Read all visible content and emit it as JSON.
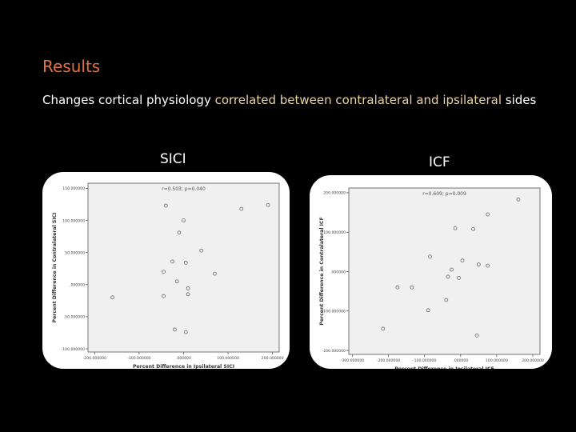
{
  "slide": {
    "heading": "Results",
    "subtitle_part1": "Changes cortical physiology ",
    "subtitle_highlight": "correlated between contralateral and ipsilateral",
    "subtitle_part2": "  sides",
    "colors": {
      "heading": "#e0703e",
      "highlight": "#e8d2a0",
      "background": "#000000"
    }
  },
  "chart_data": [
    {
      "type": "scatter",
      "panel_label": "SICI",
      "annotation": "r=0.503; p=0.040",
      "xlabel": "Percent Difference in Ipsilateral SICI",
      "ylabel": "Percent Difference in Contralateral SICI",
      "xlim": [
        -215,
        215
      ],
      "ylim": [
        -105,
        158
      ],
      "x_ticks": [
        -200,
        -100,
        0,
        100,
        200
      ],
      "y_ticks": [
        -100,
        -50,
        0,
        50,
        100,
        150
      ],
      "x_tick_labels": [
        "-200.000000",
        "-100.000000",
        ".000000",
        "100.000000",
        "200.000000"
      ],
      "y_tick_labels": [
        "-100.000000",
        "-50.000000",
        ".000000",
        "50.000000",
        "100.000000",
        "150.000000"
      ],
      "points": [
        [
          -160,
          -20
        ],
        [
          -40,
          123
        ],
        [
          0,
          100
        ],
        [
          -10,
          81
        ],
        [
          130,
          118
        ],
        [
          190,
          124
        ],
        [
          40,
          53
        ],
        [
          -25,
          36
        ],
        [
          5,
          34
        ],
        [
          70,
          17
        ],
        [
          -45,
          20
        ],
        [
          -15,
          5
        ],
        [
          10,
          -6
        ],
        [
          -45,
          -18
        ],
        [
          10,
          -15
        ],
        [
          -20,
          -70
        ],
        [
          5,
          -74
        ]
      ]
    },
    {
      "type": "scatter",
      "panel_label": "ICF",
      "annotation": "r=0.609; p=0.009",
      "xlabel": "Percent Difference in Ipsilateral ICF",
      "ylabel": "Percent Difference in Contralateral ICF",
      "xlim": [
        -310,
        220
      ],
      "ylim": [
        -210,
        212
      ],
      "x_ticks": [
        -300,
        -200,
        -100,
        0,
        100,
        200
      ],
      "y_ticks": [
        -200,
        -100,
        0,
        100,
        200
      ],
      "x_tick_labels": [
        "-300.000000",
        "-200.000000",
        "-100.000000",
        ".000000",
        "100.000000",
        "200.000000"
      ],
      "y_tick_labels": [
        "-200.000000",
        "-100.000000",
        ".000000",
        "100.000000",
        "200.000000"
      ],
      "points": [
        [
          160,
          183
        ],
        [
          75,
          145
        ],
        [
          -15,
          110
        ],
        [
          35,
          108
        ],
        [
          -85,
          38
        ],
        [
          5,
          28
        ],
        [
          50,
          18
        ],
        [
          75,
          15
        ],
        [
          -25,
          5
        ],
        [
          -35,
          -13
        ],
        [
          -5,
          -16
        ],
        [
          -175,
          -40
        ],
        [
          -135,
          -40
        ],
        [
          -40,
          -72
        ],
        [
          -90,
          -98
        ],
        [
          -215,
          -145
        ],
        [
          45,
          -162
        ]
      ]
    }
  ]
}
